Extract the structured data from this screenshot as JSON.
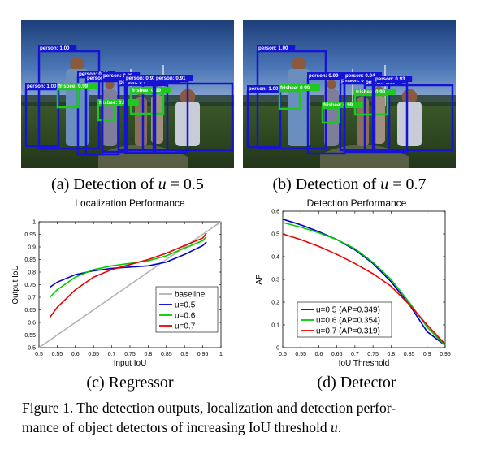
{
  "photos": [
    {
      "id": "a",
      "labels": [
        "person: 1.00",
        "person: 1.00",
        "person: 0.99",
        "person: 0.99",
        "person: 0.99",
        "person: 0.99",
        "frisbee: 0.99",
        "frisbee: 0.99",
        "frisbee: 0.99",
        "person: 0.95",
        "person: 0.93",
        "person: 0.91"
      ]
    },
    {
      "id": "b",
      "labels": [
        "person: 1.00",
        "person: 1.00",
        "person: 0.99",
        "person: 0.99",
        "person: 0.99",
        "frisbee: 0.99",
        "frisbee: 0.99",
        "frisbee: 0.99",
        "person: 0.94",
        "person: 0.93"
      ]
    }
  ],
  "subcaptions": {
    "a": {
      "prefix": "(a) Detection of ",
      "var": "u",
      "suffix": " = 0.5"
    },
    "b": {
      "prefix": "(b) Detection of ",
      "var": "u",
      "suffix": " = 0.7"
    },
    "c": "(c) Regressor",
    "d": "(d) Detector"
  },
  "caption": {
    "line1": "Figure 1. The detection outputs, localization and detection perfor-",
    "line2_prefix": "mance of object detectors of increasing IoU threshold ",
    "line2_var": "u",
    "line2_suffix": "."
  },
  "colors": {
    "u05": "#0000cc",
    "u06": "#00cc00",
    "u07": "#ee0000",
    "baseline": "#b3b3b3",
    "box_person": "#1414d2",
    "box_frisbee": "#1fc81f"
  },
  "chart_data": [
    {
      "type": "line",
      "title": "Localization Performance",
      "xlabel": "Input IoU",
      "ylabel": "Output IoU",
      "xlim": [
        0.5,
        1.0
      ],
      "ylim": [
        0.5,
        1.0
      ],
      "xticks": [
        "0.5",
        "0.55",
        "0.6",
        "0.65",
        "0.7",
        "0.75",
        "0.8",
        "0.85",
        "0.9",
        "0.95",
        "1"
      ],
      "yticks": [
        "0.5",
        "0.55",
        "0.6",
        "0.65",
        "0.7",
        "0.75",
        "0.8",
        "0.85",
        "0.9",
        "0.95",
        "1"
      ],
      "legend": [
        "baseline",
        "u=0.5",
        "u=0.6",
        "u=0.7"
      ],
      "legend_position": "bottom-right",
      "series": [
        {
          "name": "baseline",
          "x": [
            0.5,
            1.0
          ],
          "values": [
            0.5,
            1.0
          ]
        },
        {
          "name": "u=0.5",
          "x": [
            0.53,
            0.55,
            0.6,
            0.65,
            0.7,
            0.75,
            0.8,
            0.85,
            0.9,
            0.95,
            0.96
          ],
          "values": [
            0.74,
            0.76,
            0.79,
            0.805,
            0.815,
            0.82,
            0.825,
            0.84,
            0.87,
            0.905,
            0.92
          ]
        },
        {
          "name": "u=0.6",
          "x": [
            0.53,
            0.55,
            0.6,
            0.65,
            0.7,
            0.75,
            0.8,
            0.85,
            0.9,
            0.95,
            0.96
          ],
          "values": [
            0.7,
            0.73,
            0.78,
            0.81,
            0.825,
            0.835,
            0.845,
            0.865,
            0.895,
            0.925,
            0.94
          ]
        },
        {
          "name": "u=0.7",
          "x": [
            0.53,
            0.55,
            0.6,
            0.65,
            0.7,
            0.75,
            0.8,
            0.85,
            0.9,
            0.95,
            0.96
          ],
          "values": [
            0.62,
            0.66,
            0.73,
            0.78,
            0.81,
            0.83,
            0.85,
            0.875,
            0.905,
            0.935,
            0.955
          ]
        }
      ]
    },
    {
      "type": "line",
      "title": "Detection Performance",
      "xlabel": "IoU Threshold",
      "ylabel": "AP",
      "xlim": [
        0.5,
        0.95
      ],
      "ylim": [
        0,
        0.6
      ],
      "xticks": [
        "0.5",
        "0.55",
        "0.6",
        "0.65",
        "0.7",
        "0.75",
        "0.8",
        "0.85",
        "0.9",
        "0.95"
      ],
      "yticks": [
        "0",
        "0.1",
        "0.2",
        "0.3",
        "0.4",
        "0.5",
        "0.6"
      ],
      "legend": [
        "u=0.5 (AP=0.349)",
        "u=0.6 (AP=0.354)",
        "u=0.7 (AP=0.319)"
      ],
      "legend_position": "bottom-left",
      "series": [
        {
          "name": "u=0.5 (AP=0.349)",
          "x": [
            0.5,
            0.55,
            0.6,
            0.65,
            0.7,
            0.75,
            0.8,
            0.85,
            0.9,
            0.95
          ],
          "values": [
            0.565,
            0.54,
            0.51,
            0.475,
            0.43,
            0.37,
            0.29,
            0.19,
            0.07,
            0.01
          ]
        },
        {
          "name": "u=0.6 (AP=0.354)",
          "x": [
            0.5,
            0.55,
            0.6,
            0.65,
            0.7,
            0.75,
            0.8,
            0.85,
            0.9,
            0.95
          ],
          "values": [
            0.55,
            0.53,
            0.505,
            0.475,
            0.435,
            0.375,
            0.3,
            0.2,
            0.09,
            0.01
          ]
        },
        {
          "name": "u=0.7 (AP=0.319)",
          "x": [
            0.5,
            0.55,
            0.6,
            0.65,
            0.7,
            0.75,
            0.8,
            0.85,
            0.9,
            0.95
          ],
          "values": [
            0.5,
            0.475,
            0.445,
            0.41,
            0.37,
            0.325,
            0.27,
            0.19,
            0.1,
            0.015
          ]
        }
      ]
    }
  ]
}
